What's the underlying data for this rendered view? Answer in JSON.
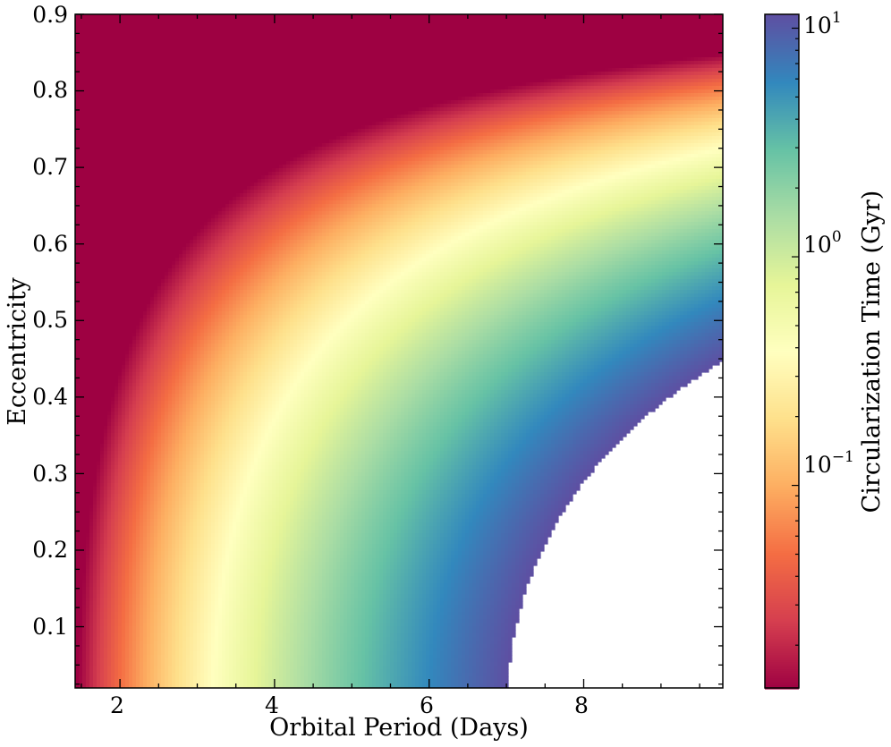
{
  "chart_data": {
    "type": "heatmap",
    "title": "",
    "xlabel": "Orbital Period (Days)",
    "ylabel": "Eccentricity",
    "xlim": [
      1.42,
      9.8
    ],
    "ylim": [
      0.02,
      0.9
    ],
    "x_ticks": [
      2,
      4,
      6,
      8
    ],
    "x_tick_labels": [
      "2",
      "4",
      "6",
      "8"
    ],
    "y_ticks": [
      0.1,
      0.2,
      0.3,
      0.4,
      0.5,
      0.6,
      0.7,
      0.8,
      0.9
    ],
    "y_tick_labels": [
      "0.1",
      "0.2",
      "0.3",
      "0.4",
      "0.5",
      "0.6",
      "0.7",
      "0.8",
      "0.9"
    ],
    "grid": false,
    "colormap": "Spectral",
    "colorbar": {
      "label": "Circularization Time (Gyr)",
      "scale": "log",
      "range": [
        0.013,
        11.5
      ],
      "ticks": [
        0.1,
        1,
        10
      ],
      "tick_base": "10",
      "tick_exponents": [
        "−1",
        "0",
        "1"
      ]
    },
    "description_values": {
      "min_color_value_gyr": 0.013,
      "max_color_value_gyr": 11.5,
      "masked_region": "values above ~11 Gyr not shown (white)"
    }
  }
}
